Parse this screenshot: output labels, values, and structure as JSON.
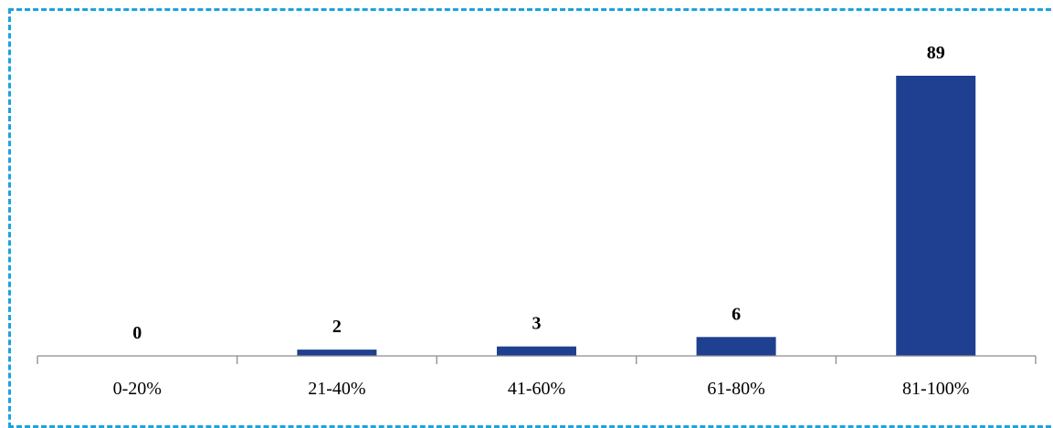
{
  "chart_data": {
    "type": "bar",
    "categories": [
      "0-20%",
      "21-40%",
      "41-60%",
      "61-80%",
      "81-100%"
    ],
    "values": [
      0,
      2,
      3,
      6,
      89
    ],
    "title": "",
    "xlabel": "",
    "ylabel": "",
    "ylim": [
      0,
      89
    ],
    "grid": false,
    "legend": "none",
    "bar_color": "#1f3f91",
    "axis_color": "#8c8c8c",
    "frame_color": "#1aa3e0"
  }
}
